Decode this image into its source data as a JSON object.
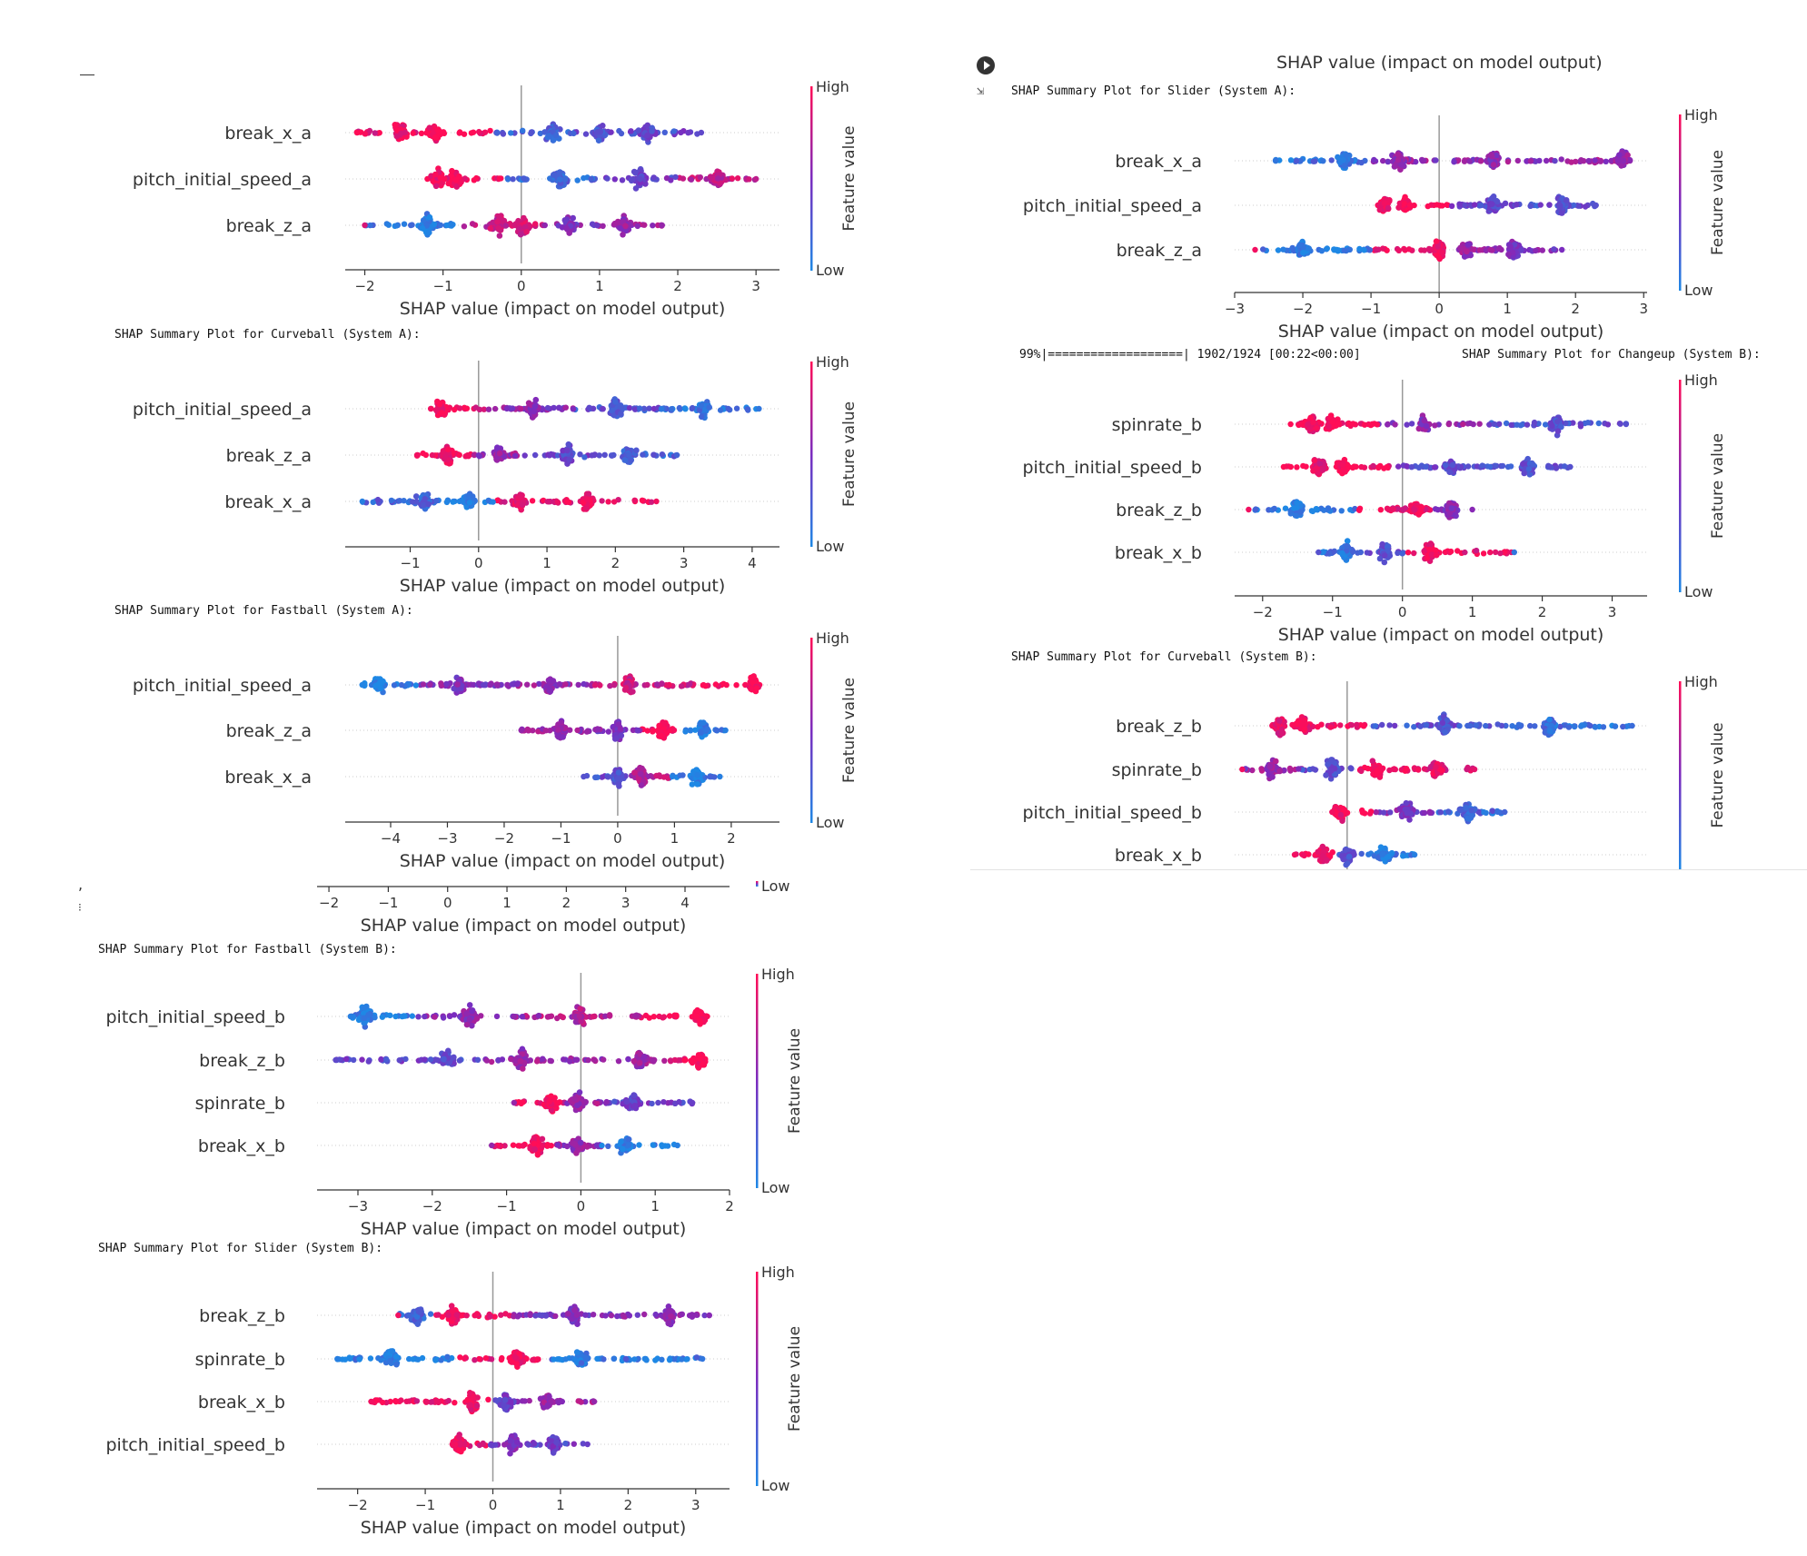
{
  "header": {
    "right_top_xlabel": "SHAP value (impact on model output)",
    "progress": "99%|===================| 1902/1924 [00:22<00:00]"
  },
  "colorbar": {
    "high": "High",
    "low": "Low",
    "label": "Feature value"
  },
  "xlabel": "SHAP value (impact on model output)",
  "colors": {
    "low": "#1e88e5",
    "mid": "#7b2cbf",
    "high": "#ff0d57"
  },
  "chart_data": [
    {
      "id": "a1",
      "type": "scatter",
      "caption": "",
      "features": [
        "break_x_a",
        "pitch_initial_speed_a",
        "break_z_a"
      ],
      "ticks": [
        -2,
        -1,
        0,
        1,
        2,
        3
      ],
      "xlim": [
        -2.25,
        3.3
      ],
      "rows": [
        {
          "min": -2.1,
          "max": 2.3,
          "clusters": [
            {
              "x": -1.1,
              "c": 1.0
            },
            {
              "x": -1.55,
              "c": 0.95
            },
            {
              "x": 1.0,
              "c": 0.3
            },
            {
              "x": 0.4,
              "c": 0.2
            },
            {
              "x": 1.6,
              "c": 0.35
            }
          ]
        },
        {
          "min": -1.2,
          "max": 3.0,
          "clusters": [
            {
              "x": -0.85,
              "c": 1.0
            },
            {
              "x": -1.05,
              "c": 0.95
            },
            {
              "x": 0.5,
              "c": 0.2
            },
            {
              "x": 1.5,
              "c": 0.4
            },
            {
              "x": 2.5,
              "c": 0.75
            }
          ]
        },
        {
          "min": -2.0,
          "max": 1.8,
          "clusters": [
            {
              "x": 0.0,
              "c": 0.85
            },
            {
              "x": -0.3,
              "c": 0.8
            },
            {
              "x": -1.2,
              "c": 0.05
            },
            {
              "x": 0.6,
              "c": 0.5
            },
            {
              "x": 1.3,
              "c": 0.6
            }
          ]
        }
      ]
    },
    {
      "id": "a2",
      "type": "scatter",
      "caption": "SHAP Summary Plot for Curveball (System A):",
      "features": [
        "pitch_initial_speed_a",
        "break_z_a",
        "break_x_a"
      ],
      "ticks": [
        -1,
        0,
        1,
        2,
        3,
        4
      ],
      "xlim": [
        -1.95,
        4.4
      ],
      "rows": [
        {
          "min": -0.7,
          "max": 4.1,
          "clusters": [
            {
              "x": -0.55,
              "c": 0.95
            },
            {
              "x": 0.8,
              "c": 0.55
            },
            {
              "x": 2.0,
              "c": 0.3
            },
            {
              "x": 3.3,
              "c": 0.1
            }
          ]
        },
        {
          "min": -0.9,
          "max": 2.9,
          "clusters": [
            {
              "x": -0.45,
              "c": 0.95
            },
            {
              "x": 0.3,
              "c": 0.6
            },
            {
              "x": 1.3,
              "c": 0.35
            },
            {
              "x": 2.2,
              "c": 0.2
            }
          ]
        },
        {
          "min": -1.7,
          "max": 2.6,
          "clusters": [
            {
              "x": -0.15,
              "c": 0.05
            },
            {
              "x": -0.8,
              "c": 0.2
            },
            {
              "x": 0.6,
              "c": 0.9
            },
            {
              "x": 1.6,
              "c": 0.95
            }
          ]
        }
      ]
    },
    {
      "id": "a3",
      "type": "scatter",
      "caption": "SHAP Summary Plot for Fastball (System A):",
      "features": [
        "pitch_initial_speed_a",
        "break_z_a",
        "break_x_a"
      ],
      "ticks": [
        -4,
        -3,
        -2,
        -1,
        0,
        1,
        2
      ],
      "xlim": [
        -4.8,
        2.85
      ],
      "rows": [
        {
          "min": -4.5,
          "max": 2.5,
          "clusters": [
            {
              "x": -4.2,
              "c": 0.02
            },
            {
              "x": -2.8,
              "c": 0.5
            },
            {
              "x": -1.2,
              "c": 0.55
            },
            {
              "x": 0.2,
              "c": 0.8
            },
            {
              "x": 2.4,
              "c": 1.0
            }
          ]
        },
        {
          "min": -1.7,
          "max": 1.9,
          "clusters": [
            {
              "x": -1.0,
              "c": 0.6
            },
            {
              "x": 0.0,
              "c": 0.5
            },
            {
              "x": 0.8,
              "c": 1.0
            },
            {
              "x": 1.5,
              "c": 0.05
            }
          ]
        },
        {
          "min": -0.6,
          "max": 1.8,
          "clusters": [
            {
              "x": 0.0,
              "c": 0.3
            },
            {
              "x": 0.4,
              "c": 0.7
            },
            {
              "x": 1.4,
              "c": 0.05
            }
          ]
        }
      ]
    },
    {
      "id": "a4",
      "type": "scatter",
      "caption": "SHAP Summary Plot for Slider (System A):",
      "features": [
        "break_x_a",
        "pitch_initial_speed_a",
        "break_z_a"
      ],
      "ticks": [
        -3,
        -2,
        -1,
        0,
        1,
        2,
        3
      ],
      "xlim": [
        -3.0,
        3.05
      ],
      "rows": [
        {
          "min": -2.4,
          "max": 2.8,
          "clusters": [
            {
              "x": -1.4,
              "c": 0.1
            },
            {
              "x": -0.6,
              "c": 0.6
            },
            {
              "x": 0.8,
              "c": 0.55
            },
            {
              "x": 2.7,
              "c": 0.6
            }
          ]
        },
        {
          "min": -0.9,
          "max": 2.3,
          "clusters": [
            {
              "x": -0.5,
              "c": 1.0
            },
            {
              "x": -0.8,
              "c": 0.95
            },
            {
              "x": 0.8,
              "c": 0.35
            },
            {
              "x": 1.8,
              "c": 0.3
            }
          ]
        },
        {
          "min": -2.7,
          "max": 1.8,
          "clusters": [
            {
              "x": 0.0,
              "c": 0.95
            },
            {
              "x": -2.0,
              "c": 0.05
            },
            {
              "x": 0.4,
              "c": 0.6
            },
            {
              "x": 1.1,
              "c": 0.5
            }
          ]
        }
      ]
    },
    {
      "id": "b1",
      "type": "scatter",
      "caption": "SHAP Summary Plot for Changeup (System B):",
      "features": [
        "spinrate_b",
        "pitch_initial_speed_b",
        "break_z_b",
        "break_x_b"
      ],
      "ticks": [
        -2,
        -1,
        0,
        1,
        2,
        3
      ],
      "xlim": [
        -2.4,
        3.5
      ],
      "rows": [
        {
          "min": -1.6,
          "max": 3.2,
          "clusters": [
            {
              "x": -1.0,
              "c": 1.0
            },
            {
              "x": -1.3,
              "c": 0.95
            },
            {
              "x": 0.3,
              "c": 0.55
            },
            {
              "x": 2.2,
              "c": 0.3
            }
          ]
        },
        {
          "min": -1.7,
          "max": 2.4,
          "clusters": [
            {
              "x": -0.85,
              "c": 1.0
            },
            {
              "x": -1.2,
              "c": 0.9
            },
            {
              "x": 0.7,
              "c": 0.35
            },
            {
              "x": 1.8,
              "c": 0.3
            }
          ]
        },
        {
          "min": -2.2,
          "max": 1.0,
          "clusters": [
            {
              "x": 0.2,
              "c": 0.95
            },
            {
              "x": -1.5,
              "c": 0.05
            },
            {
              "x": 0.7,
              "c": 0.55
            }
          ]
        },
        {
          "min": -1.2,
          "max": 1.6,
          "clusters": [
            {
              "x": -0.25,
              "c": 0.3
            },
            {
              "x": 0.4,
              "c": 0.95
            },
            {
              "x": -0.8,
              "c": 0.1
            }
          ]
        }
      ]
    },
    {
      "id": "b2",
      "type": "scatter",
      "caption": "SHAP Summary Plot for Curveball (System B):",
      "features": [
        "break_z_b",
        "spinrate_b",
        "pitch_initial_speed_b",
        "break_x_b"
      ],
      "ticks": [],
      "xlim": [
        -1.5,
        4.0
      ],
      "rows": [
        {
          "min": -1.0,
          "max": 3.8,
          "clusters": [
            {
              "x": -0.6,
              "c": 0.95
            },
            {
              "x": -0.9,
              "c": 0.9
            },
            {
              "x": 1.3,
              "c": 0.3
            },
            {
              "x": 2.7,
              "c": 0.15
            }
          ]
        },
        {
          "min": -1.4,
          "max": 1.7,
          "clusters": [
            {
              "x": 0.4,
              "c": 0.95
            },
            {
              "x": -0.2,
              "c": 0.3
            },
            {
              "x": -1.0,
              "c": 0.6
            },
            {
              "x": 1.2,
              "c": 0.9
            }
          ]
        },
        {
          "min": -0.2,
          "max": 2.1,
          "clusters": [
            {
              "x": -0.1,
              "c": 0.95
            },
            {
              "x": 0.8,
              "c": 0.5
            },
            {
              "x": 1.6,
              "c": 0.2
            }
          ]
        },
        {
          "min": -0.7,
          "max": 0.9,
          "clusters": [
            {
              "x": -0.3,
              "c": 0.95
            },
            {
              "x": 0.0,
              "c": 0.3
            },
            {
              "x": 0.5,
              "c": 0.05
            }
          ]
        }
      ]
    },
    {
      "id": "b0",
      "type": "scatter",
      "caption": "",
      "features": [],
      "ticks": [
        -2,
        -1,
        0,
        1,
        2,
        3,
        4
      ],
      "xlim": [
        -2.2,
        4.75
      ],
      "rows": []
    },
    {
      "id": "b3",
      "type": "scatter",
      "caption": "SHAP Summary Plot for Fastball (System B):",
      "features": [
        "pitch_initial_speed_b",
        "break_z_b",
        "spinrate_b",
        "break_x_b"
      ],
      "ticks": [
        -3,
        -2,
        -1,
        0,
        1,
        2
      ],
      "xlim": [
        -3.55,
        2.0
      ],
      "rows": [
        {
          "min": -3.1,
          "max": 1.7,
          "clusters": [
            {
              "x": -2.9,
              "c": 0.05
            },
            {
              "x": -1.5,
              "c": 0.55
            },
            {
              "x": 0.0,
              "c": 0.7
            },
            {
              "x": 1.6,
              "c": 1.0
            }
          ]
        },
        {
          "min": -3.3,
          "max": 1.6,
          "clusters": [
            {
              "x": -1.8,
              "c": 0.35
            },
            {
              "x": -0.8,
              "c": 0.6
            },
            {
              "x": 0.8,
              "c": 0.6
            },
            {
              "x": 1.6,
              "c": 1.0
            }
          ]
        },
        {
          "min": -0.9,
          "max": 1.5,
          "clusters": [
            {
              "x": -0.05,
              "c": 0.6
            },
            {
              "x": -0.4,
              "c": 0.95
            },
            {
              "x": 0.7,
              "c": 0.4
            }
          ]
        },
        {
          "min": -1.2,
          "max": 1.3,
          "clusters": [
            {
              "x": -0.05,
              "c": 0.6
            },
            {
              "x": -0.6,
              "c": 0.95
            },
            {
              "x": 0.6,
              "c": 0.05
            }
          ]
        }
      ]
    },
    {
      "id": "b4",
      "type": "scatter",
      "caption": "SHAP Summary Plot for Slider (System B):",
      "features": [
        "break_z_b",
        "spinrate_b",
        "break_x_b",
        "pitch_initial_speed_b"
      ],
      "ticks": [
        -2,
        -1,
        0,
        1,
        2,
        3
      ],
      "xlim": [
        -2.6,
        3.5
      ],
      "rows": [
        {
          "min": -1.4,
          "max": 3.2,
          "clusters": [
            {
              "x": -0.6,
              "c": 0.95
            },
            {
              "x": -1.1,
              "c": 0.2
            },
            {
              "x": 1.2,
              "c": 0.5
            },
            {
              "x": 2.6,
              "c": 0.55
            }
          ]
        },
        {
          "min": -2.3,
          "max": 3.1,
          "clusters": [
            {
              "x": -1.5,
              "c": 0.05
            },
            {
              "x": 0.35,
              "c": 0.95
            },
            {
              "x": 1.3,
              "c": 0.1
            }
          ]
        },
        {
          "min": -1.8,
          "max": 1.5,
          "clusters": [
            {
              "x": -0.3,
              "c": 0.95
            },
            {
              "x": 0.2,
              "c": 0.4
            },
            {
              "x": 0.8,
              "c": 0.6
            }
          ]
        },
        {
          "min": -0.6,
          "max": 1.4,
          "clusters": [
            {
              "x": -0.5,
              "c": 0.95
            },
            {
              "x": 0.3,
              "c": 0.5
            },
            {
              "x": 0.9,
              "c": 0.4
            }
          ]
        }
      ]
    }
  ]
}
